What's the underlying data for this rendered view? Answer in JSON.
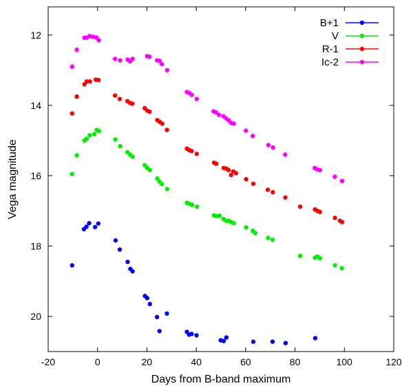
{
  "chart_data": {
    "type": "scatter",
    "title": "",
    "xlabel": "Days from B-band maximum",
    "ylabel": "Vega magnitude",
    "xlim": [
      -20,
      120
    ],
    "ylim": [
      21.0,
      11.2
    ],
    "y_inverted": true,
    "grid": false,
    "legend_position": "top-right",
    "x_ticks": [
      -20,
      0,
      20,
      40,
      60,
      80,
      100,
      120
    ],
    "y_ticks": [
      12,
      14,
      16,
      18,
      20
    ],
    "x_tick_labels": [
      "-20",
      "0",
      "20",
      "40",
      "60",
      "80",
      "100",
      "120"
    ],
    "y_tick_labels": [
      "12",
      "14",
      "16",
      "18",
      "20"
    ],
    "series": [
      {
        "name": "B+1",
        "color": "#0000ff",
        "points": [
          [
            -10.3,
            18.55
          ],
          [
            -5.5,
            17.52
          ],
          [
            -4.5,
            17.45
          ],
          [
            -3.4,
            17.35
          ],
          [
            -1.0,
            17.46
          ],
          [
            0.3,
            17.36
          ],
          [
            7.3,
            17.84
          ],
          [
            9.0,
            18.1
          ],
          [
            12.2,
            18.45
          ],
          [
            13.3,
            18.65
          ],
          [
            14.2,
            18.72
          ],
          [
            19.2,
            19.42
          ],
          [
            20.1,
            19.48
          ],
          [
            21.2,
            19.65
          ],
          [
            24.1,
            20.02
          ],
          [
            25.1,
            20.42
          ],
          [
            28.1,
            19.92
          ],
          [
            36.2,
            20.44
          ],
          [
            37.1,
            20.52
          ],
          [
            38.1,
            20.5
          ],
          [
            40.1,
            20.54
          ],
          [
            49.9,
            20.68
          ],
          [
            51.1,
            20.7
          ],
          [
            52.2,
            20.6
          ],
          [
            63.1,
            20.72
          ],
          [
            70.9,
            20.72
          ],
          [
            76.2,
            20.76
          ],
          [
            88.2,
            20.62
          ]
        ]
      },
      {
        "name": "V",
        "color": "#00ee00",
        "points": [
          [
            -10.3,
            15.95
          ],
          [
            -8.4,
            15.42
          ],
          [
            -5.3,
            15.0
          ],
          [
            -4.4,
            14.95
          ],
          [
            -3.2,
            14.85
          ],
          [
            -1.3,
            14.82
          ],
          [
            -0.3,
            14.7
          ],
          [
            0.6,
            14.73
          ],
          [
            7.2,
            14.97
          ],
          [
            9.2,
            15.16
          ],
          [
            12.1,
            15.33
          ],
          [
            13.2,
            15.4
          ],
          [
            14.2,
            15.46
          ],
          [
            19.1,
            15.7
          ],
          [
            20.1,
            15.78
          ],
          [
            21.2,
            15.84
          ],
          [
            24.2,
            16.08
          ],
          [
            25.1,
            16.17
          ],
          [
            26.1,
            16.24
          ],
          [
            28.2,
            16.38
          ],
          [
            36.2,
            16.77
          ],
          [
            37.2,
            16.8
          ],
          [
            38.3,
            16.83
          ],
          [
            40.3,
            16.88
          ],
          [
            47.2,
            17.13
          ],
          [
            48.2,
            17.15
          ],
          [
            49.4,
            17.14
          ],
          [
            51.0,
            17.23
          ],
          [
            52.0,
            17.28
          ],
          [
            53.1,
            17.28
          ],
          [
            54.2,
            17.32
          ],
          [
            55.2,
            17.35
          ],
          [
            60.2,
            17.47
          ],
          [
            62.9,
            17.57
          ],
          [
            63.9,
            17.63
          ],
          [
            69.1,
            17.77
          ],
          [
            70.9,
            17.82
          ],
          [
            82.1,
            18.28
          ],
          [
            88.1,
            18.33
          ],
          [
            89.1,
            18.3
          ],
          [
            90.1,
            18.35
          ],
          [
            96.2,
            18.55
          ],
          [
            99.0,
            18.63
          ]
        ]
      },
      {
        "name": "R-1",
        "color": "#ff0000",
        "points": [
          [
            -10.3,
            14.23
          ],
          [
            -8.4,
            13.75
          ],
          [
            -5.3,
            13.4
          ],
          [
            -4.4,
            13.32
          ],
          [
            -3.1,
            13.32
          ],
          [
            -0.7,
            13.27
          ],
          [
            0.4,
            13.28
          ],
          [
            7.1,
            13.72
          ],
          [
            9.0,
            13.82
          ],
          [
            12.1,
            13.88
          ],
          [
            13.1,
            13.93
          ],
          [
            14.1,
            13.95
          ],
          [
            19.1,
            14.08
          ],
          [
            20.1,
            14.15
          ],
          [
            21.1,
            14.18
          ],
          [
            24.2,
            14.42
          ],
          [
            25.2,
            14.47
          ],
          [
            26.2,
            14.52
          ],
          [
            28.1,
            14.7
          ],
          [
            36.2,
            15.23
          ],
          [
            37.1,
            15.27
          ],
          [
            38.1,
            15.3
          ],
          [
            40.2,
            15.38
          ],
          [
            47.2,
            15.63
          ],
          [
            48.1,
            15.66
          ],
          [
            51.1,
            15.78
          ],
          [
            52.2,
            15.8
          ],
          [
            53.1,
            15.84
          ],
          [
            54.1,
            15.98
          ],
          [
            55.0,
            15.88
          ],
          [
            56.1,
            15.93
          ],
          [
            60.2,
            16.1
          ],
          [
            63.1,
            16.23
          ],
          [
            69.0,
            16.4
          ],
          [
            71.0,
            16.47
          ],
          [
            76.1,
            16.62
          ],
          [
            82.1,
            16.88
          ],
          [
            88.1,
            16.96
          ],
          [
            89.1,
            17.0
          ],
          [
            90.1,
            17.03
          ],
          [
            96.2,
            17.2
          ],
          [
            98.2,
            17.28
          ],
          [
            99.1,
            17.32
          ]
        ]
      },
      {
        "name": "Ic-2",
        "color": "#ff00ff",
        "points": [
          [
            -10.3,
            12.9
          ],
          [
            -8.4,
            12.42
          ],
          [
            -5.3,
            12.08
          ],
          [
            -4.4,
            12.07
          ],
          [
            -3.2,
            12.03
          ],
          [
            -1.8,
            12.05
          ],
          [
            -0.4,
            12.07
          ],
          [
            0.5,
            12.15
          ],
          [
            7.1,
            12.68
          ],
          [
            9.1,
            12.72
          ],
          [
            12.2,
            12.7
          ],
          [
            13.2,
            12.75
          ],
          [
            14.2,
            12.68
          ],
          [
            20.1,
            12.6
          ],
          [
            21.1,
            12.62
          ],
          [
            24.1,
            12.72
          ],
          [
            25.1,
            12.73
          ],
          [
            26.1,
            12.83
          ],
          [
            28.2,
            13.0
          ],
          [
            36.2,
            13.62
          ],
          [
            37.2,
            13.65
          ],
          [
            38.2,
            13.7
          ],
          [
            40.2,
            13.82
          ],
          [
            47.0,
            14.17
          ],
          [
            48.0,
            14.2
          ],
          [
            49.2,
            14.27
          ],
          [
            51.0,
            14.31
          ],
          [
            52.1,
            14.37
          ],
          [
            53.2,
            14.43
          ],
          [
            54.2,
            14.5
          ],
          [
            55.2,
            14.52
          ],
          [
            60.1,
            14.72
          ],
          [
            62.9,
            14.87
          ],
          [
            69.2,
            15.13
          ],
          [
            71.1,
            15.2
          ],
          [
            76.0,
            15.4
          ],
          [
            88.0,
            15.78
          ],
          [
            89.0,
            15.82
          ],
          [
            90.1,
            15.84
          ],
          [
            96.1,
            16.03
          ],
          [
            99.1,
            16.15
          ]
        ]
      }
    ]
  }
}
